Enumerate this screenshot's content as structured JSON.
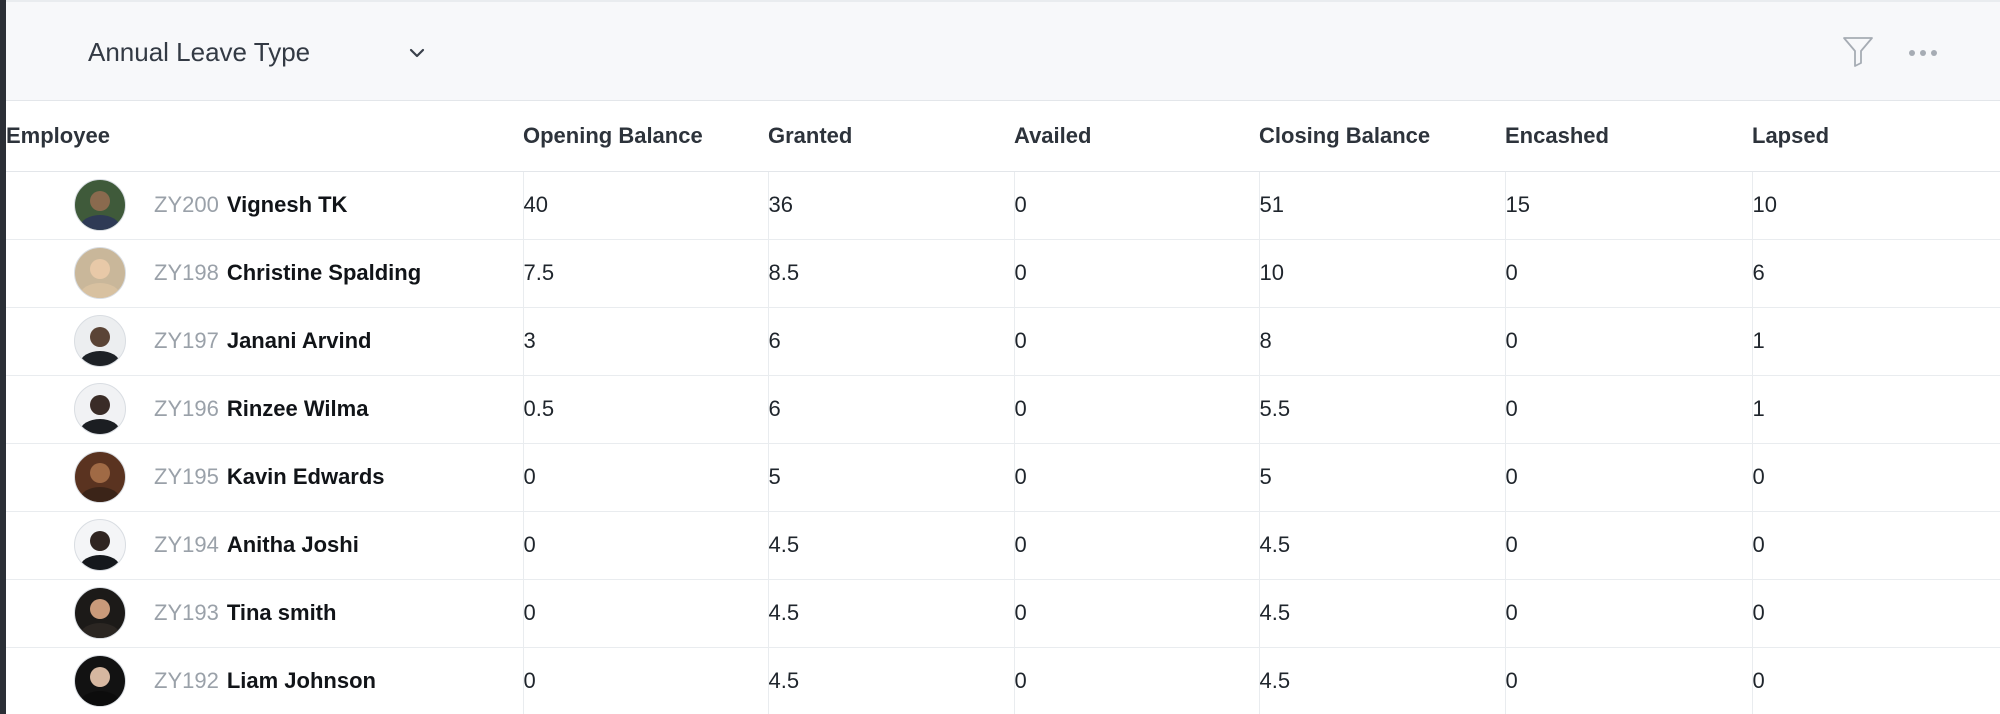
{
  "toolbar": {
    "leave_type": "Annual Leave Type",
    "filter_icon": "filter-icon",
    "more_icon": "more-options-icon"
  },
  "table": {
    "headers": [
      "Employee",
      "Opening Balance",
      "Granted",
      "Availed",
      "Closing Balance",
      "Encashed",
      "Lapsed"
    ],
    "rows": [
      {
        "id": "ZY200",
        "name": "Vignesh TK",
        "opening": "40",
        "granted": "36",
        "availed": "0",
        "closing": "51",
        "encashed": "15",
        "lapsed": "10",
        "avatar": {
          "bg": "#3f5a3a",
          "head": "#8a6a4e",
          "body": "#2e3a55"
        }
      },
      {
        "id": "ZY198",
        "name": "Christine Spalding",
        "opening": "7.5",
        "granted": "8.5",
        "availed": "0",
        "closing": "10",
        "encashed": "0",
        "lapsed": "6",
        "avatar": {
          "bg": "#c9b79a",
          "head": "#e8c9a8",
          "body": "#d8c1a0"
        }
      },
      {
        "id": "ZY197",
        "name": "Janani Arvind",
        "opening": "3",
        "granted": "6",
        "availed": "0",
        "closing": "8",
        "encashed": "0",
        "lapsed": "1",
        "avatar": {
          "bg": "#eceef0",
          "head": "#5a4436",
          "body": "#1d2126"
        }
      },
      {
        "id": "ZY196",
        "name": "Rinzee Wilma",
        "opening": "0.5",
        "granted": "6",
        "availed": "0",
        "closing": "5.5",
        "encashed": "0",
        "lapsed": "1",
        "avatar": {
          "bg": "#f1f2f4",
          "head": "#3a2c27",
          "body": "#1b1e22"
        }
      },
      {
        "id": "ZY195",
        "name": "Kavin Edwards",
        "opening": "0",
        "granted": "5",
        "availed": "0",
        "closing": "5",
        "encashed": "0",
        "lapsed": "0",
        "avatar": {
          "bg": "#5a3320",
          "head": "#a06a45",
          "body": "#3b2418"
        }
      },
      {
        "id": "ZY194",
        "name": "Anitha Joshi",
        "opening": "0",
        "granted": "4.5",
        "availed": "0",
        "closing": "4.5",
        "encashed": "0",
        "lapsed": "0",
        "avatar": {
          "bg": "#f4f5f7",
          "head": "#2f2420",
          "body": "#15181c"
        }
      },
      {
        "id": "ZY193",
        "name": "Tina smith",
        "opening": "0",
        "granted": "4.5",
        "availed": "0",
        "closing": "4.5",
        "encashed": "0",
        "lapsed": "0",
        "avatar": {
          "bg": "#1c1a18",
          "head": "#c99a7a",
          "body": "#2b2622"
        }
      },
      {
        "id": "ZY192",
        "name": "Liam Johnson",
        "opening": "0",
        "granted": "4.5",
        "availed": "0",
        "closing": "4.5",
        "encashed": "0",
        "lapsed": "0",
        "avatar": {
          "bg": "#121212",
          "head": "#d6b7a0",
          "body": "#0c0c0c"
        }
      }
    ]
  }
}
